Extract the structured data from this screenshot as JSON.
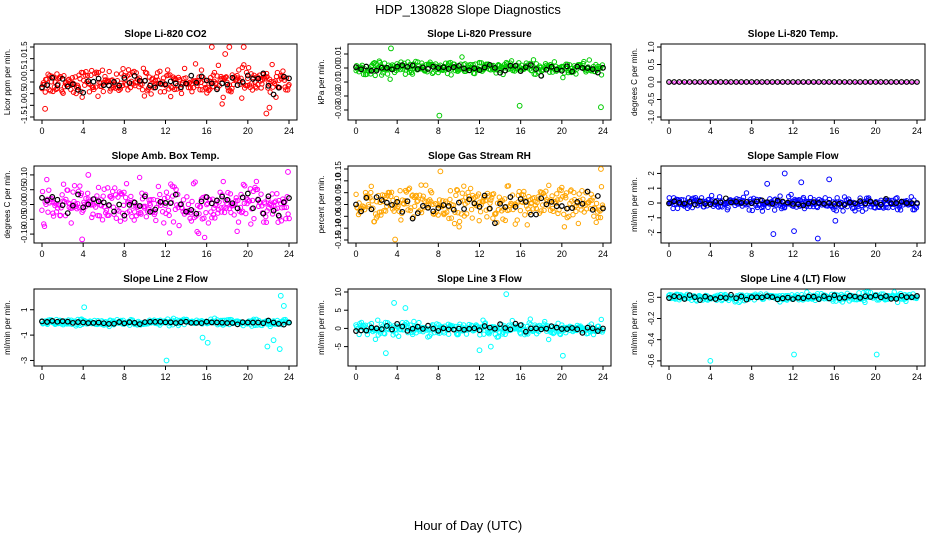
{
  "figure": {
    "title": "HDP_130828  Slope Diagnostics",
    "xlabel": "Hour of Day (UTC)"
  },
  "chart_data": [
    {
      "type": "scatter",
      "title": "Slope Li-820 CO2",
      "ylabel": "Licor ppm per min.",
      "color": "#ff0000",
      "xlim": [
        0,
        24
      ],
      "ylim": [
        -1.5,
        1.5
      ],
      "yticks": [
        -1.5,
        -1.0,
        -0.5,
        0.0,
        0.5,
        1.0,
        1.5
      ],
      "ytick_labels": [
        "-1.5",
        "-1.0",
        "-0.5",
        "0.0",
        "0.5",
        "1.0",
        "1.5"
      ],
      "xticks": [
        0,
        4,
        8,
        12,
        16,
        20,
        24
      ],
      "spread": 0.45,
      "outliers": [
        [
          0.3,
          -1.15
        ],
        [
          16.5,
          1.5
        ],
        [
          17.8,
          1.2
        ],
        [
          18.2,
          1.5
        ],
        [
          19.6,
          1.5
        ],
        [
          21.8,
          -1.35
        ],
        [
          22.1,
          -1.1
        ]
      ]
    },
    {
      "type": "scatter",
      "title": "Slope Li-820 Pressure",
      "ylabel": "kPa per min.",
      "color": "#00cc00",
      "xlim": [
        0,
        24
      ],
      "ylim": [
        -0.035,
        0.015
      ],
      "yticks": [
        -0.03,
        -0.02,
        -0.01,
        0.0,
        0.01
      ],
      "ytick_labels": [
        "-0.03",
        "-0.02",
        "-0.01",
        "0.00",
        "0.01"
      ],
      "xticks": [
        0,
        4,
        8,
        12,
        16,
        20,
        24
      ],
      "spread": 0.004,
      "outliers": [
        [
          3.4,
          0.014
        ],
        [
          8.1,
          -0.034
        ],
        [
          15.9,
          -0.027
        ],
        [
          23.8,
          -0.028
        ]
      ]
    },
    {
      "type": "scatter",
      "title": "Slope Li-820 Temp.",
      "ylabel": "degrees C per min.",
      "color": "#ff00ff",
      "xlim": [
        0,
        24
      ],
      "ylim": [
        -1.0,
        1.0
      ],
      "yticks": [
        -1.0,
        -0.5,
        0.0,
        0.5,
        1.0
      ],
      "ytick_labels": [
        "-1.0",
        "-0.5",
        "0.0",
        "0.5",
        "1.0"
      ],
      "xticks": [
        0,
        4,
        8,
        12,
        16,
        20,
        24
      ],
      "spread": 0.0,
      "outliers": []
    },
    {
      "type": "scatter",
      "title": "Slope Amb. Box Temp.",
      "ylabel": "degrees C per min.",
      "color": "#ff00ff",
      "xlim": [
        0,
        24
      ],
      "ylim": [
        -0.12,
        0.12
      ],
      "yticks": [
        -0.1,
        -0.05,
        0.0,
        0.05,
        0.1
      ],
      "ytick_labels": [
        "-0.10",
        "-0.05",
        "0.00",
        "0.05",
        "0.10"
      ],
      "xticks": [
        0,
        4,
        8,
        12,
        16,
        20,
        24
      ],
      "spread": 0.055,
      "outliers": [
        [
          3.9,
          -0.118
        ],
        [
          23.9,
          0.11
        ],
        [
          4.5,
          0.1
        ]
      ]
    },
    {
      "type": "scatter",
      "title": "Slope Gas Stream RH",
      "ylabel": "percent per min.",
      "color": "#ffa500",
      "xlim": [
        0,
        24
      ],
      "ylim": [
        -0.15,
        0.15
      ],
      "yticks": [
        -0.15,
        -0.1,
        -0.05,
        0.0,
        0.05,
        0.1,
        0.15
      ],
      "ytick_labels": [
        "-0.15",
        "-0.10",
        "-0.05",
        "0.00",
        "0.05",
        "0.10",
        "0.15"
      ],
      "xticks": [
        0,
        4,
        8,
        12,
        16,
        20,
        24
      ],
      "spread": 0.06,
      "outliers": [
        [
          3.8,
          -0.148
        ],
        [
          23.8,
          0.15
        ],
        [
          8.2,
          0.14
        ]
      ]
    },
    {
      "type": "scatter",
      "title": "Slope Sample Flow",
      "ylabel": "ml/min per min.",
      "color": "#0000ff",
      "xlim": [
        0,
        24
      ],
      "ylim": [
        -2.5,
        2.3
      ],
      "yticks": [
        -2,
        -1,
        0,
        1,
        2
      ],
      "ytick_labels": [
        "-2",
        "-1",
        "0",
        "1",
        "2"
      ],
      "xticks": [
        0,
        4,
        8,
        12,
        16,
        20,
        24
      ],
      "spread": 0.35,
      "outliers": [
        [
          9.5,
          1.3
        ],
        [
          10.1,
          -2.1
        ],
        [
          11.2,
          2.0
        ],
        [
          12.1,
          -1.9
        ],
        [
          14.4,
          -2.4
        ],
        [
          15.5,
          1.6
        ],
        [
          16.1,
          -1.2
        ],
        [
          12.8,
          1.4
        ]
      ]
    },
    {
      "type": "scatter",
      "title": "Slope Line 2 Flow",
      "ylabel": "ml/min per min.",
      "color": "#00ffff",
      "xlim": [
        0,
        24
      ],
      "ylim": [
        -3.2,
        2.4
      ],
      "yticks": [
        -3,
        -1,
        1
      ],
      "ytick_labels": [
        "-3",
        "-1",
        "1"
      ],
      "xticks": [
        0,
        4,
        8,
        12,
        16,
        20,
        24
      ],
      "spread": 0.2,
      "outliers": [
        [
          12.1,
          -3.0
        ],
        [
          16.1,
          -1.6
        ],
        [
          15.6,
          -1.2
        ],
        [
          4.1,
          1.2
        ],
        [
          21.9,
          -1.9
        ],
        [
          22.5,
          -1.4
        ],
        [
          23.2,
          2.1
        ],
        [
          23.5,
          1.3
        ],
        [
          23.1,
          -2.1
        ]
      ]
    },
    {
      "type": "scatter",
      "title": "Slope Line 3 Flow",
      "ylabel": "ml/min per min.",
      "color": "#00ffff",
      "xlim": [
        0,
        24
      ],
      "ylim": [
        -9.5,
        10
      ],
      "yticks": [
        -5,
        0,
        5,
        10
      ],
      "ytick_labels": [
        "-5",
        "0",
        "5",
        "10"
      ],
      "xticks": [
        0,
        4,
        8,
        12,
        16,
        20,
        24
      ],
      "spread": 1.5,
      "outliers": [
        [
          3.7,
          7.0
        ],
        [
          14.6,
          9.4
        ],
        [
          20.1,
          -7.5
        ],
        [
          2.9,
          -6.8
        ],
        [
          12.0,
          -6.0
        ],
        [
          13.1,
          -5.0
        ],
        [
          4.8,
          5.6
        ]
      ]
    },
    {
      "type": "scatter",
      "title": "Slope Line 4 (LT) Flow",
      "ylabel": "ml/min per min.",
      "color": "#00ffff",
      "xlim": [
        0,
        24
      ],
      "ylim": [
        -0.62,
        0.05
      ],
      "yticks": [
        -0.6,
        -0.4,
        -0.2,
        0.0
      ],
      "ytick_labels": [
        "-0.6",
        "-0.4",
        "-0.2",
        "0.0"
      ],
      "xticks": [
        0,
        4,
        8,
        12,
        16,
        20,
        24
      ],
      "spread": 0.03,
      "outliers": [
        [
          4.0,
          -0.6
        ],
        [
          12.1,
          -0.54
        ],
        [
          20.1,
          -0.54
        ]
      ]
    }
  ]
}
